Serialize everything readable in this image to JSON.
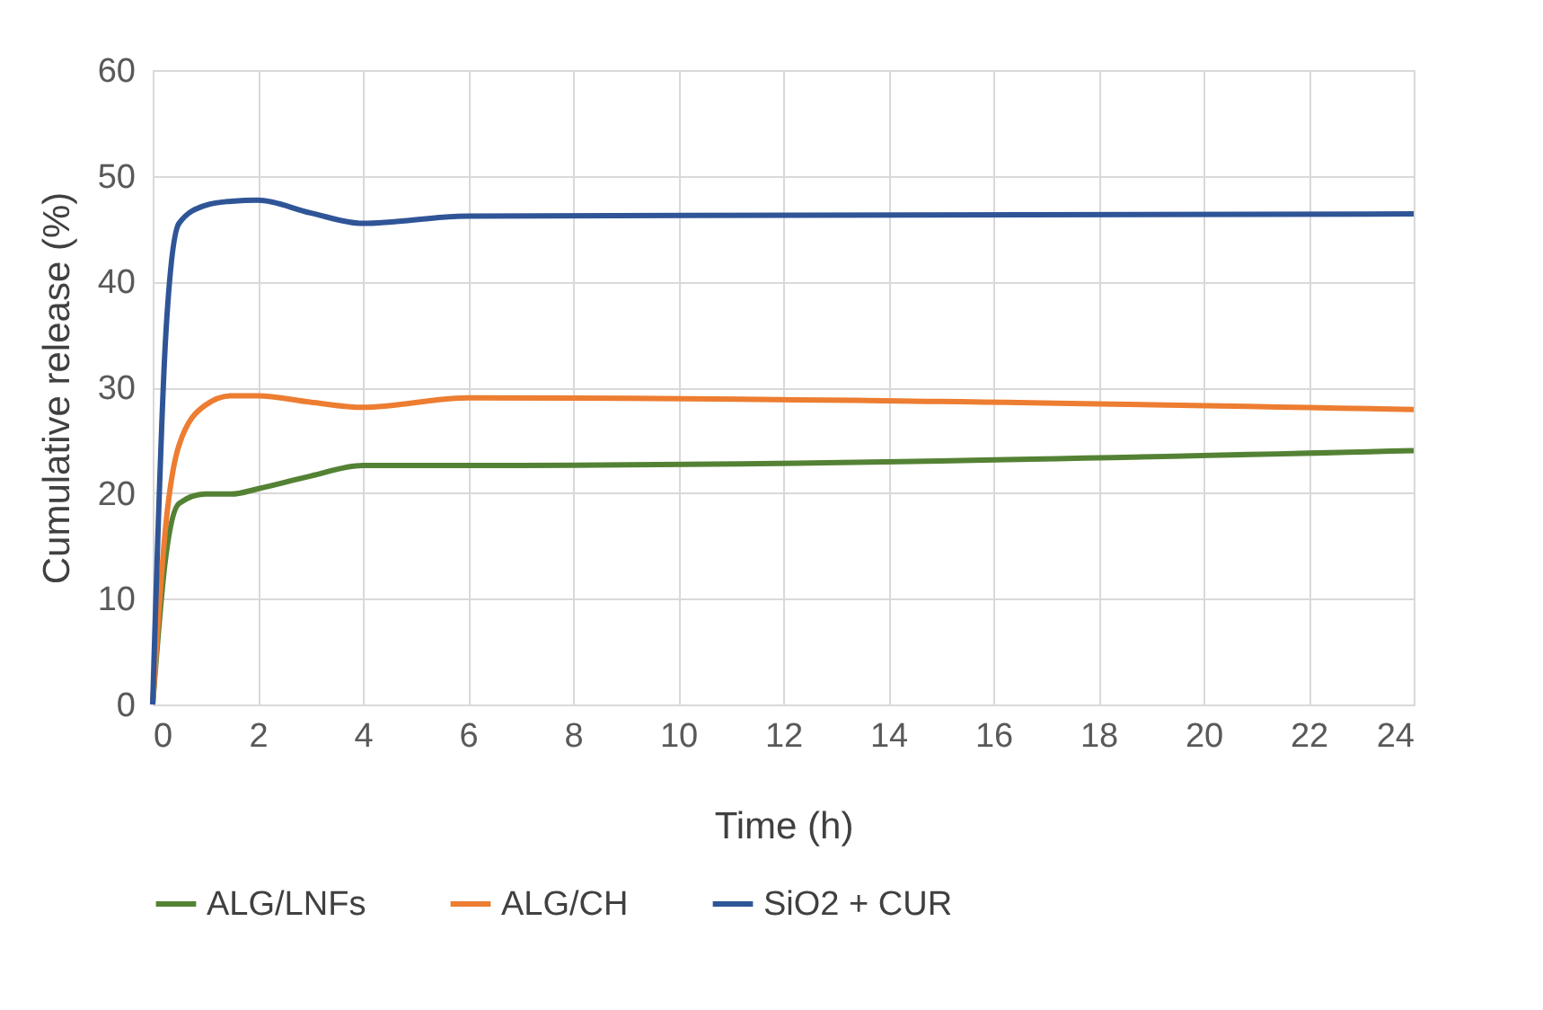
{
  "chart_data": {
    "type": "line",
    "xlabel": "Time (h)",
    "ylabel": "Cumulative release (%)",
    "xlim": [
      0,
      24
    ],
    "xticks": [
      0,
      2,
      4,
      6,
      8,
      10,
      12,
      14,
      16,
      18,
      20,
      22,
      24
    ],
    "ylim": [
      0,
      60
    ],
    "yticks": [
      0,
      10,
      20,
      30,
      40,
      50,
      60
    ],
    "grid": true,
    "legend": "bottom",
    "marker": "none",
    "line_style": "solid",
    "series": [
      {
        "name": "ALG/LNFs",
        "color": "#548235",
        "x": [
          0,
          0.25,
          0.5,
          1,
          1.5,
          2,
          3,
          4,
          6,
          24
        ],
        "values": [
          0,
          14,
          19,
          19.9,
          19.9,
          20.4,
          21.6,
          22.6,
          22.6,
          24
        ]
      },
      {
        "name": "ALG/CH",
        "color": "#ed7d31",
        "x": [
          0,
          0.25,
          0.5,
          1,
          1.5,
          2,
          3,
          4,
          6,
          24
        ],
        "values": [
          0,
          17,
          24.5,
          28.3,
          29.2,
          29.2,
          28.6,
          28.1,
          29,
          27.9
        ]
      },
      {
        "name": "SiO2 + CUR",
        "color": "#2f5597",
        "x": [
          0,
          0.25,
          0.5,
          1,
          1.5,
          2,
          3,
          4,
          6,
          24
        ],
        "values": [
          0,
          35,
          45.5,
          47.2,
          47.6,
          47.7,
          46.5,
          45.5,
          46.2,
          46.4
        ]
      }
    ]
  }
}
